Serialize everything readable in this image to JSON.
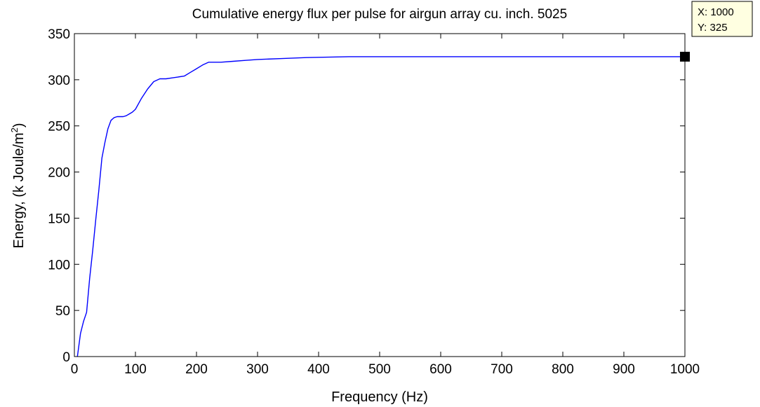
{
  "chart_data": {
    "type": "line",
    "title": "Cumulative energy flux per pulse for airgun array cu. inch. 5025",
    "xlabel": "Frequency (Hz)",
    "ylabel_main": "Energy, (k Joule/m",
    "ylabel_sup": "2",
    "ylabel_end": ")",
    "xlim": [
      0,
      1000
    ],
    "ylim": [
      0,
      350
    ],
    "xticks": [
      0,
      100,
      200,
      300,
      400,
      500,
      600,
      700,
      800,
      900,
      1000
    ],
    "yticks": [
      0,
      50,
      100,
      150,
      200,
      250,
      300,
      350
    ],
    "grid": false,
    "line_color": "#0000ff",
    "series": [
      {
        "x": [
          5,
          10,
          15,
          20,
          25,
          30,
          35,
          40,
          45,
          50,
          55,
          60,
          65,
          70,
          75,
          80,
          85,
          90,
          95,
          100,
          110,
          120,
          130,
          140,
          150,
          160,
          170,
          180,
          190,
          200,
          210,
          220,
          240,
          260,
          280,
          300,
          340,
          380,
          450,
          600,
          800,
          1000
        ],
        "y": [
          0,
          25,
          38,
          48,
          85,
          115,
          148,
          180,
          215,
          232,
          247,
          256,
          259,
          260,
          260,
          260,
          261,
          263,
          265,
          268,
          280,
          290,
          298,
          301,
          301,
          302,
          303,
          304,
          308,
          312,
          316,
          319,
          319,
          320,
          321,
          322,
          323,
          324,
          325,
          325,
          325,
          325
        ]
      }
    ],
    "datatip": {
      "x": 1000,
      "y": 325,
      "x_text": "X: 1000",
      "y_text": "Y: 325",
      "marker_color": "#000000",
      "box_color": "#ffffe1"
    }
  }
}
